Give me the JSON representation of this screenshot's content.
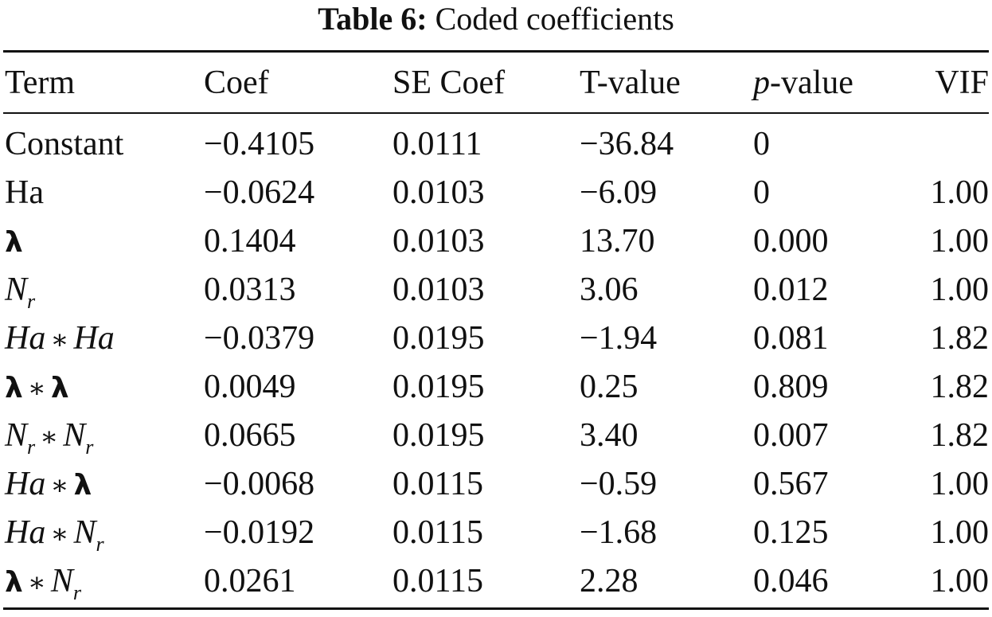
{
  "caption": {
    "label": "Table 6:",
    "title": "Coded coefficients"
  },
  "headers": {
    "term": "Term",
    "coef": "Coef",
    "se": "SE Coef",
    "t": "T-value",
    "p_italic": "p",
    "p_rest": "-value",
    "vif": "VIF"
  },
  "symbols": {
    "lambda": "λ",
    "star": "∗",
    "Ha": "Ha",
    "N": "N",
    "r": "r"
  },
  "rows": [
    {
      "term": "Constant",
      "coef": "−0.4105",
      "se": "0.0111",
      "t": "−36.84",
      "p": "0",
      "vif": ""
    },
    {
      "term": "Ha",
      "coef": "−0.0624",
      "se": "0.0103",
      "t": "−6.09",
      "p": "0",
      "vif": "1.00"
    },
    {
      "term": "λ",
      "coef": "0.1404",
      "se": "0.0103",
      "t": "13.70",
      "p": "0.000",
      "vif": "1.00"
    },
    {
      "term": "Nr",
      "coef": "0.0313",
      "se": "0.0103",
      "t": "3.06",
      "p": "0.012",
      "vif": "1.00"
    },
    {
      "term": "Ha ∗ Ha",
      "coef": "−0.0379",
      "se": "0.0195",
      "t": "−1.94",
      "p": "0.081",
      "vif": "1.82"
    },
    {
      "term": "λ ∗ λ",
      "coef": "0.0049",
      "se": "0.0195",
      "t": "0.25",
      "p": "0.809",
      "vif": "1.82"
    },
    {
      "term": "Nr ∗ Nr",
      "coef": "0.0665",
      "se": "0.0195",
      "t": "3.40",
      "p": "0.007",
      "vif": "1.82"
    },
    {
      "term": "Ha ∗ λ",
      "coef": "−0.0068",
      "se": "0.0115",
      "t": "−0.59",
      "p": "0.567",
      "vif": "1.00"
    },
    {
      "term": "Ha ∗ Nr",
      "coef": "−0.0192",
      "se": "0.0115",
      "t": "−1.68",
      "p": "0.125",
      "vif": "1.00"
    },
    {
      "term": "λ ∗ Nr",
      "coef": "0.0261",
      "se": "0.0115",
      "t": "2.28",
      "p": "0.046",
      "vif": "1.00"
    }
  ]
}
